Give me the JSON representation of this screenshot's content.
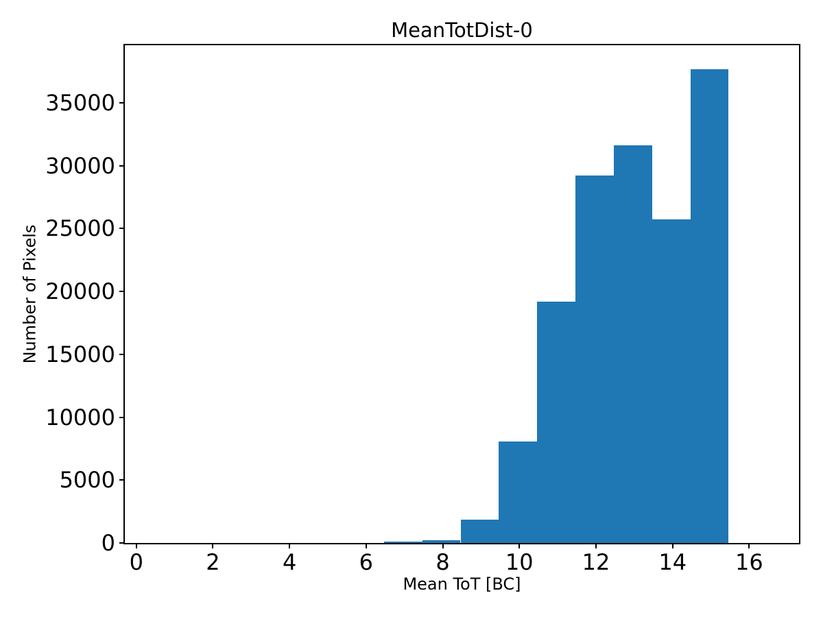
{
  "chart_data": {
    "type": "bar",
    "subtype": "histogram",
    "title": "MeanTotDist-0",
    "xlabel": "Mean ToT [BC]",
    "ylabel": "Number of Pixels",
    "bar_color": "#1f77b4",
    "axis_color": "#000000",
    "background_color": "#ffffff",
    "grid": false,
    "legend": null,
    "xlim": [
      -0.3,
      17.3
    ],
    "ylim": [
      0,
      39585
    ],
    "xticks": [
      0,
      2,
      4,
      6,
      8,
      10,
      12,
      14,
      16
    ],
    "yticks": [
      0,
      5000,
      10000,
      15000,
      20000,
      25000,
      30000,
      35000
    ],
    "bin_edges": [
      0.5,
      1.5,
      2.5,
      3.5,
      4.5,
      5.5,
      6.5,
      7.5,
      8.5,
      9.5,
      10.5,
      11.5,
      12.5,
      13.5,
      14.5,
      15.5,
      16.5
    ],
    "counts": [
      0,
      0,
      0,
      0,
      0,
      0,
      110,
      240,
      1840,
      8060,
      19200,
      29250,
      31600,
      25750,
      37700,
      0
    ]
  }
}
